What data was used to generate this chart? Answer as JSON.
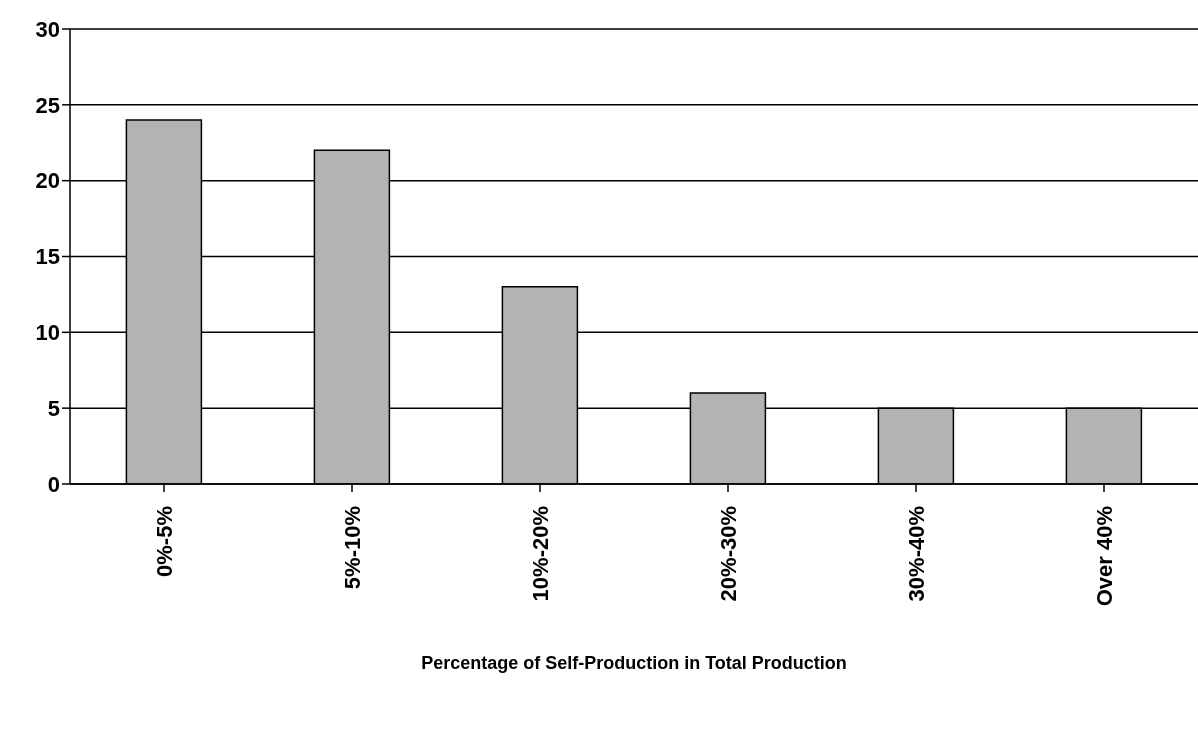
{
  "chart_data": {
    "type": "bar",
    "xlabel": "Percentage of Self-Production in Total Production",
    "categories": [
      "0%-5%",
      "5%-10%",
      "10%-20%",
      "20%-30%",
      "30%-40%",
      "Over 40%"
    ],
    "values": [
      24,
      22,
      13,
      6,
      5,
      5
    ],
    "color": "#b3b3b3",
    "ylim": [
      0,
      30
    ],
    "yticks": [
      0,
      5,
      10,
      15,
      20,
      25,
      30
    ],
    "grid": "y"
  }
}
